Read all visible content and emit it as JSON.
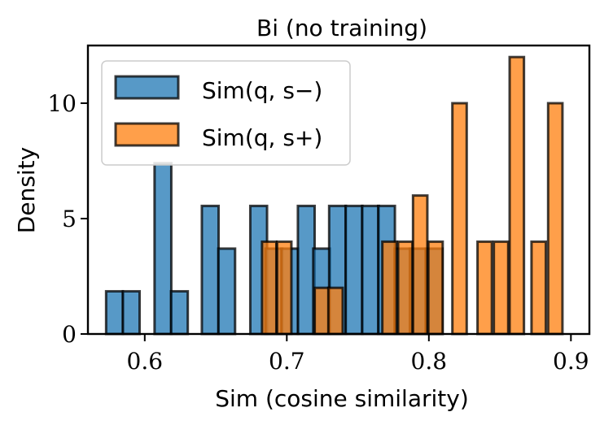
{
  "chart_data": {
    "type": "bar",
    "title": "Bi (no training)",
    "xlabel": "Sim (cosine similarity)",
    "ylabel": "Density",
    "xlim": [
      0.56,
      0.913
    ],
    "ylim": [
      0,
      12.5
    ],
    "xticks": [
      0.6,
      0.7,
      0.8,
      0.9
    ],
    "xtick_labels": [
      "0.6",
      "0.7",
      "0.8",
      "0.9"
    ],
    "yticks": [
      0,
      5,
      10
    ],
    "ytick_labels": [
      "0",
      "5",
      "10"
    ],
    "legend_position": "top-left",
    "series": [
      {
        "name": "Sim(q, s−)",
        "legend_label": "Sim(q, s−)",
        "color": "#1f77b4",
        "bin_width": 0.0118,
        "bin_centers": [
          0.5787,
          0.5905,
          0.6128,
          0.6244,
          0.6461,
          0.6577,
          0.6802,
          0.6909,
          0.7021,
          0.7137,
          0.7245,
          0.7357,
          0.7473,
          0.7589,
          0.7702,
          0.7818,
          0.7925,
          0.8036
        ],
        "values": [
          1.85,
          1.85,
          7.4,
          1.85,
          5.55,
          3.7,
          5.55,
          3.7,
          3.7,
          5.55,
          3.7,
          5.55,
          5.55,
          5.55,
          5.55,
          3.7,
          3.7,
          3.7
        ]
      },
      {
        "name": "Sim(q, s+)",
        "legend_label": "Sim(q, s+)",
        "color": "#ff7f0e",
        "bin_width": 0.0101,
        "bin_centers": [
          0.6876,
          0.6982,
          0.7247,
          0.7343,
          0.7723,
          0.7834,
          0.7939,
          0.8047,
          0.8216,
          0.8393,
          0.8508,
          0.8619,
          0.8773,
          0.889
        ],
        "values": [
          4.0,
          4.0,
          2.0,
          2.0,
          4.0,
          4.0,
          6.0,
          4.0,
          10.0,
          4.0,
          4.0,
          12.0,
          4.0,
          10.0
        ]
      }
    ]
  }
}
